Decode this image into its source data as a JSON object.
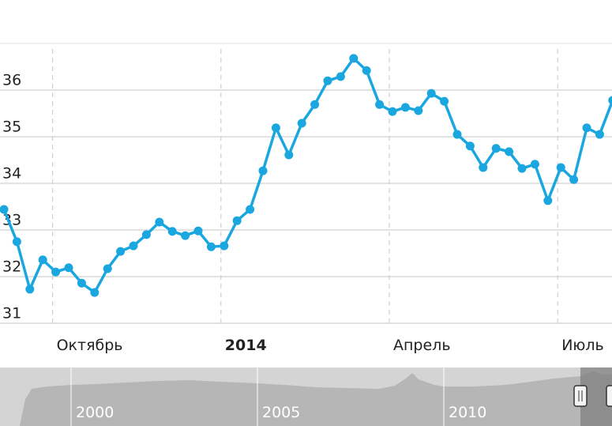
{
  "chart_data": {
    "type": "line",
    "categories": [
      null,
      null,
      null,
      null,
      "Октябрь",
      null,
      null,
      null,
      null,
      null,
      null,
      null,
      null,
      null,
      null,
      null,
      null,
      "2014",
      null,
      null,
      null,
      null,
      null,
      null,
      null,
      null,
      null,
      null,
      null,
      null,
      "Апрель",
      null,
      null,
      null,
      null,
      null,
      null,
      null,
      null,
      null,
      null,
      null,
      null,
      "Июль",
      null,
      null,
      null,
      null
    ],
    "series": [
      {
        "color": "#1aa7e0",
        "values": [
          33.44,
          32.75,
          31.73,
          32.36,
          32.1,
          32.19,
          31.86,
          31.66,
          32.17,
          32.54,
          32.66,
          32.9,
          33.17,
          32.97,
          32.88,
          32.98,
          32.64,
          32.66,
          33.2,
          33.44,
          34.27,
          35.19,
          34.61,
          35.29,
          35.69,
          36.2,
          36.29,
          36.68,
          36.42,
          35.69,
          35.54,
          35.63,
          35.56,
          35.93,
          35.76,
          35.05,
          34.8,
          34.34,
          34.75,
          34.68,
          34.32,
          34.41,
          33.63,
          34.34,
          34.08,
          35.19,
          35.05,
          35.78
        ]
      }
    ],
    "ylim": [
      31,
      37
    ],
    "yticks": [
      31,
      32,
      33,
      34,
      35,
      36
    ],
    "grid": true
  },
  "navigator": {
    "labels": [
      "2000",
      "2005",
      "2010"
    ]
  }
}
